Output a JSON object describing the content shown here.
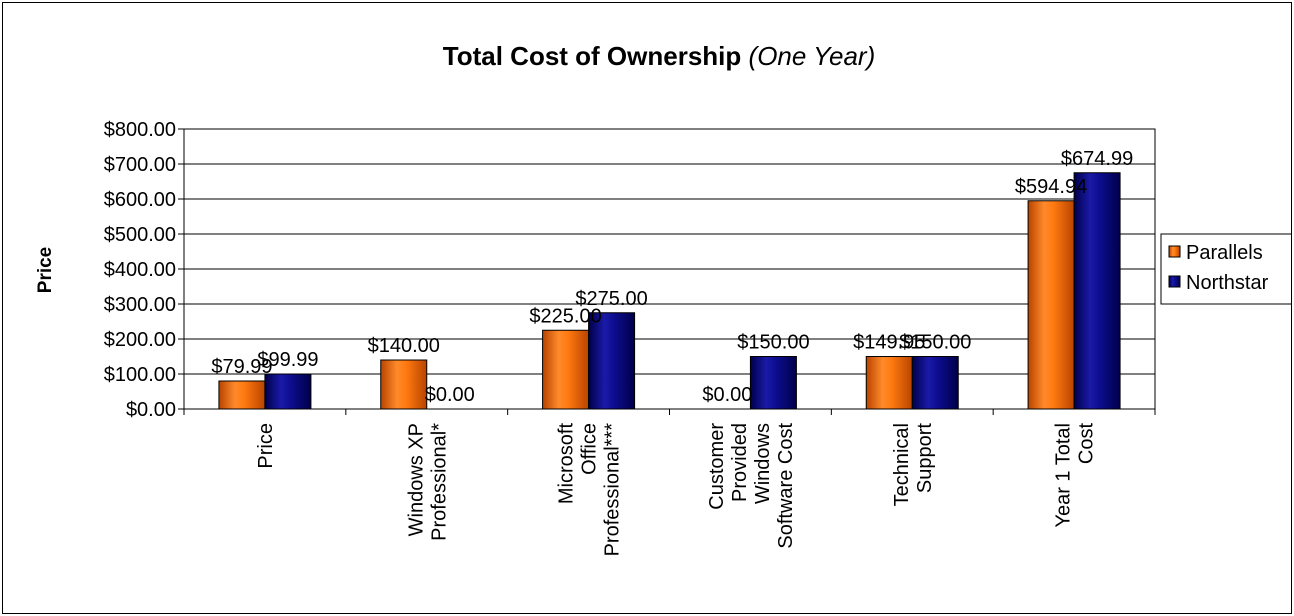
{
  "chart_data": {
    "type": "bar",
    "title": "Total Cost of Ownership",
    "subtitle": "(One Year)",
    "xlabel": "",
    "ylabel": "Price",
    "ylim": [
      0,
      800
    ],
    "yticks": [
      "$0.00",
      "$100.00",
      "$200.00",
      "$300.00",
      "$400.00",
      "$500.00",
      "$600.00",
      "$700.00",
      "$800.00"
    ],
    "grid": true,
    "legend_position": "right",
    "categories": [
      [
        "Price"
      ],
      [
        "Windows XP",
        "Professional*"
      ],
      [
        "Microsoft",
        "Office",
        "Professional***"
      ],
      [
        "Customer",
        "Provided",
        "Windows",
        "Software Cost"
      ],
      [
        "Technical",
        "Support"
      ],
      [
        "Year 1 Total",
        "Cost"
      ]
    ],
    "series": [
      {
        "name": "Parallels",
        "color": "#FF6600",
        "values": [
          79.99,
          140.0,
          225.0,
          0.0,
          149.95,
          594.94
        ],
        "labels": [
          "$79.99",
          "$140.00",
          "$225.00",
          "$0.00",
          "$149.95",
          "$594.94"
        ]
      },
      {
        "name": "Northstar",
        "color": "#000080",
        "values": [
          99.99,
          0.0,
          275.0,
          150.0,
          150.0,
          674.99
        ],
        "labels": [
          "$99.99",
          "$0.00",
          "$275.00",
          "$150.00",
          "$150.00",
          "$674.99"
        ]
      }
    ]
  }
}
